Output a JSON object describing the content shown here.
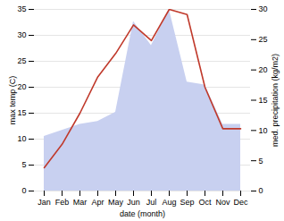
{
  "chart_data": {
    "type": "line",
    "xlabel": "date (month)",
    "ylabel": "max temp (C)",
    "y2label": "med. precipitation (kg/m2)",
    "categories": [
      "Jan",
      "Feb",
      "Mar",
      "Apr",
      "May",
      "Jun",
      "Jul",
      "Aug",
      "Sep",
      "Oct",
      "Nov",
      "Dec"
    ],
    "series": [
      {
        "type": "area",
        "axis": "y2",
        "color": "#c8d0f0",
        "values": [
          9.0,
          10.0,
          11.0,
          11.5,
          13.0,
          28.0,
          24.0,
          30.0,
          18.0,
          17.5,
          11.0,
          11.0
        ]
      },
      {
        "type": "line",
        "color": "#c0392b",
        "values": [
          4.5,
          9.0,
          15.0,
          22.0,
          26.5,
          32.0,
          29.0,
          35.0,
          34.0,
          20.0,
          12.0,
          12.0
        ]
      }
    ],
    "ylim": [
      0,
      35
    ],
    "yticks": [
      0,
      5,
      10,
      15,
      20,
      25,
      30,
      35
    ],
    "y2lim": [
      0,
      30
    ],
    "y2ticks": [
      0,
      5,
      10,
      15,
      20,
      25,
      30
    ],
    "grid": true
  }
}
